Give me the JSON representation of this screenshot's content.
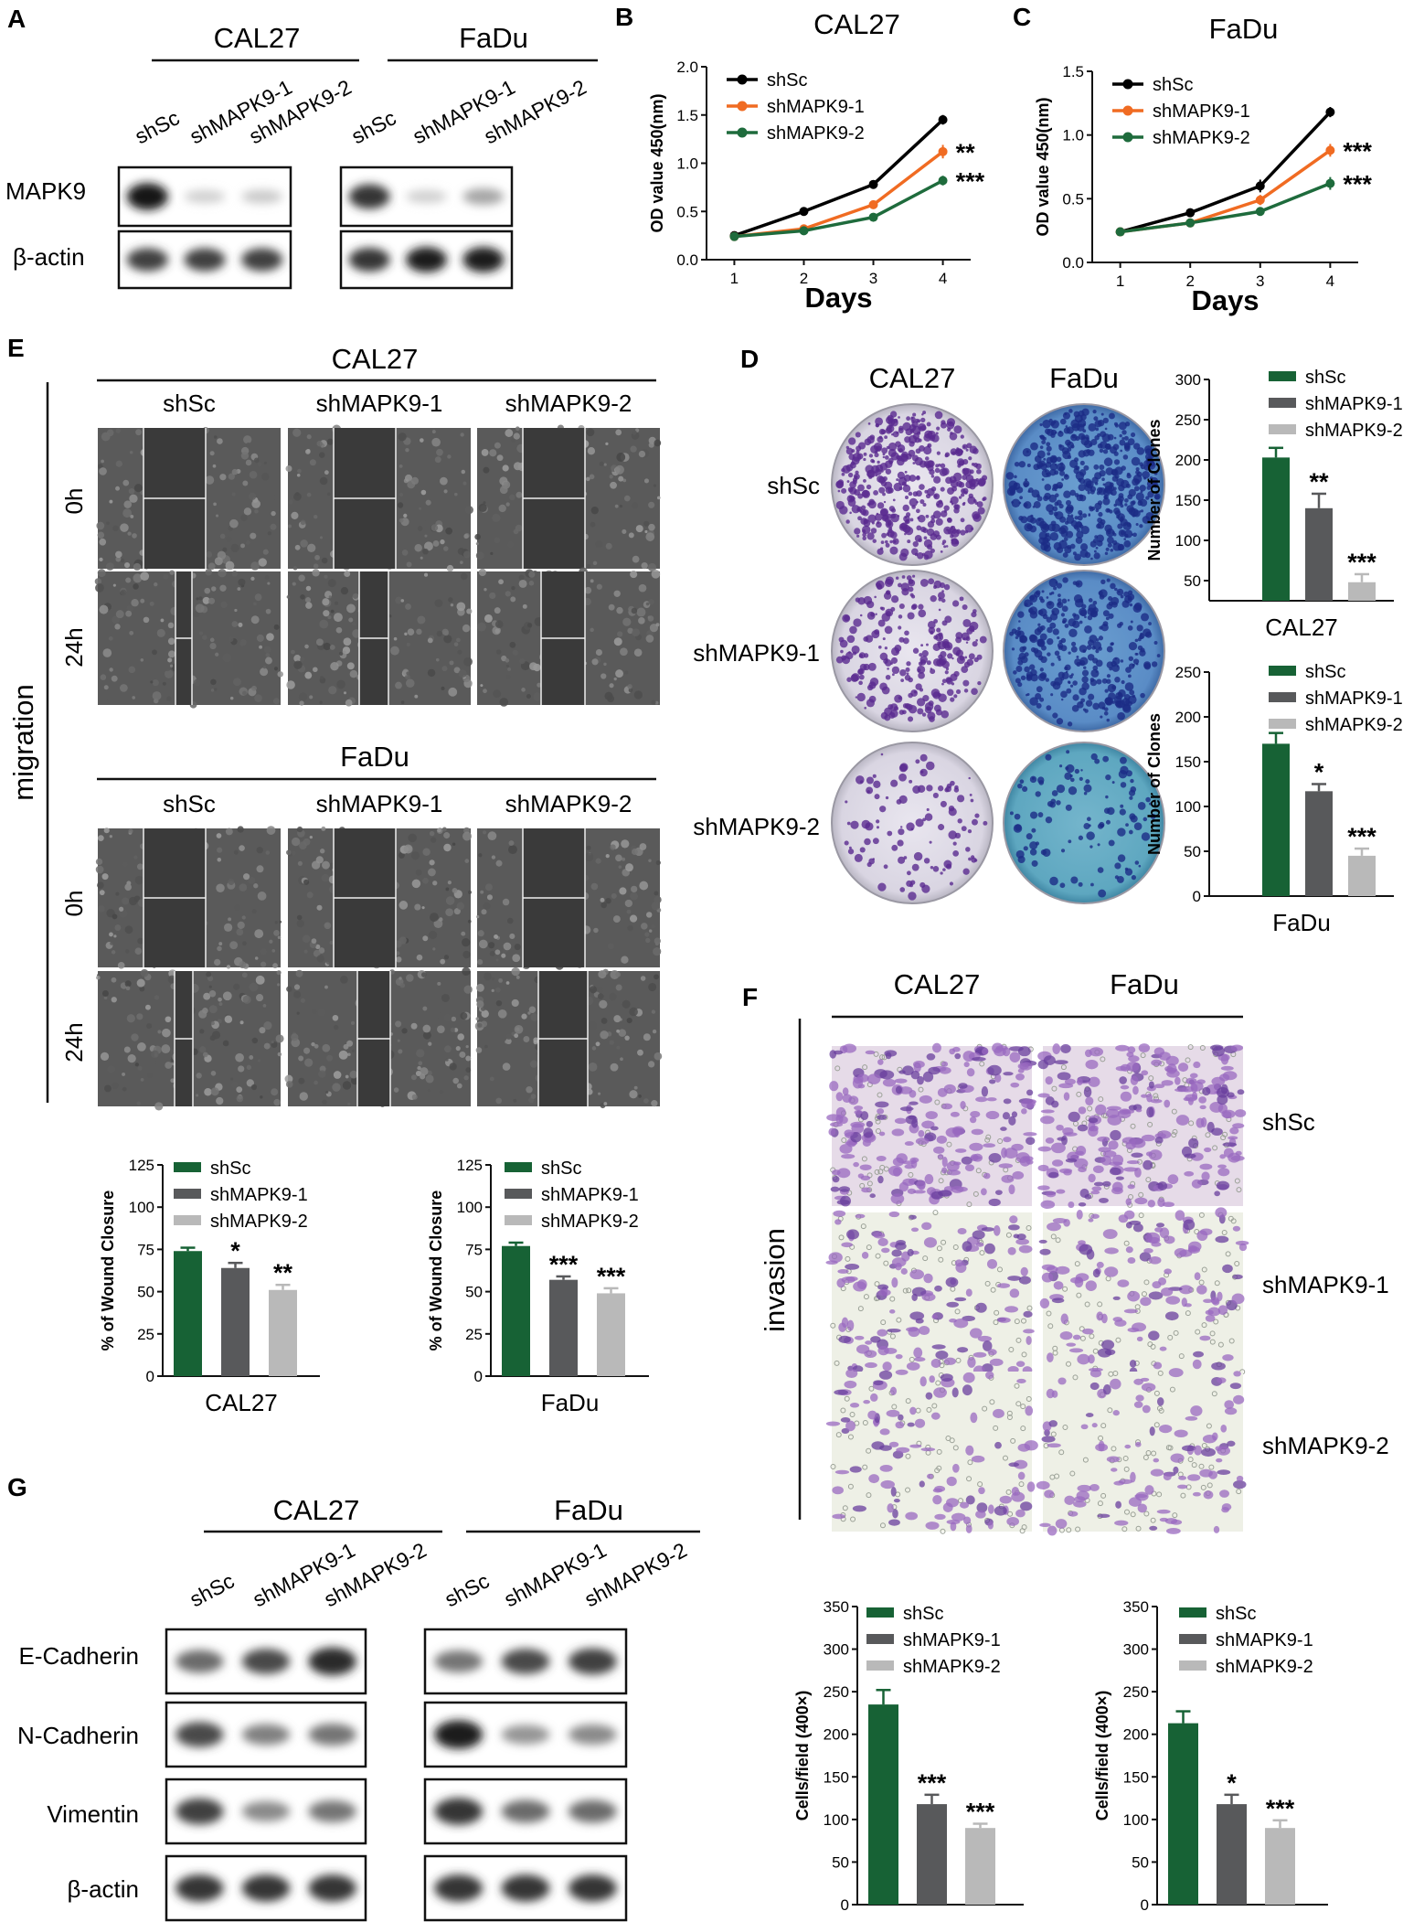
{
  "panel_labels": {
    "A": "A",
    "B": "B",
    "C": "C",
    "D": "D",
    "E": "E",
    "F": "F",
    "G": "G"
  },
  "colors": {
    "shSc": "#176235",
    "shMAPK9_1": "#58595b",
    "shMAPK9_2": "#b9b9b9",
    "line_shSc": "#000000",
    "line_shMAPK9_1": "#f06b22",
    "line_shMAPK9_2": "#1e6b3c"
  },
  "panelA": {
    "cells": [
      "CAL27",
      "FaDu"
    ],
    "lanes": [
      "shSc",
      "shMAPK9-1",
      "shMAPK9-2"
    ],
    "rows": [
      "MAPK9",
      "β-actin"
    ],
    "band_intensity": [
      [
        [
          1.0,
          0.12,
          0.15
        ],
        [
          0.8,
          0.8,
          0.8
        ]
      ],
      [
        [
          0.85,
          0.12,
          0.32
        ],
        [
          0.85,
          0.95,
          0.95
        ]
      ]
    ]
  },
  "panelG": {
    "cells": [
      "CAL27",
      "FaDu"
    ],
    "lanes": [
      "shSc",
      "shMAPK9-1",
      "shMAPK9-2"
    ],
    "rows": [
      "E-Cadherin",
      "N-Cadherin",
      "Vimentin",
      "β-actin"
    ],
    "band_intensity": [
      [
        [
          0.6,
          0.75,
          0.9
        ],
        [
          0.75,
          0.5,
          0.55
        ],
        [
          0.8,
          0.45,
          0.55
        ],
        [
          0.85,
          0.85,
          0.85
        ]
      ],
      [
        [
          0.55,
          0.75,
          0.8
        ],
        [
          0.95,
          0.4,
          0.45
        ],
        [
          0.85,
          0.6,
          0.6
        ],
        [
          0.85,
          0.85,
          0.85
        ]
      ]
    ]
  },
  "panelE": {
    "side_label": "migration",
    "cells": [
      "CAL27",
      "FaDu"
    ],
    "columns": [
      "shSc",
      "shMAPK9-1",
      "shMAPK9-2"
    ],
    "rows": [
      "0h",
      "24h"
    ],
    "gap_fraction_0h": [
      0.34,
      0.34,
      0.34
    ],
    "gap_fraction_24h_CAL27": [
      0.09,
      0.16,
      0.24
    ],
    "gap_fraction_24h_FaDu": [
      0.1,
      0.18,
      0.27
    ]
  },
  "panelD": {
    "cells": [
      "CAL27",
      "FaDu"
    ],
    "rows": [
      "shSc",
      "shMAPK9-1",
      "shMAPK9-2"
    ],
    "colony_density": [
      [
        1.0,
        0.55,
        0.2
      ],
      [
        1.0,
        0.7,
        0.2
      ]
    ]
  },
  "panelF": {
    "side_label": "invasion",
    "cells": [
      "CAL27",
      "FaDu"
    ],
    "rows": [
      "shSc",
      "shMAPK9-1",
      "shMAPK9-2"
    ],
    "cell_density": [
      [
        1.0,
        0.6,
        0.45
      ],
      [
        1.0,
        0.55,
        0.45
      ]
    ]
  },
  "chart_data": [
    {
      "id": "B",
      "type": "line",
      "title": "CAL27",
      "xlabel": "Days",
      "ylabel": "OD value 450(nm)",
      "x": [
        1,
        2,
        3,
        4
      ],
      "xlim": [
        0.6,
        4.4
      ],
      "ylim": [
        0,
        2.0
      ],
      "xticks": [
        "1",
        "2",
        "3",
        "4"
      ],
      "yticks": [
        "0.0",
        "0.5",
        "1.0",
        "1.5",
        "2.0"
      ],
      "legend_position": "top-left",
      "series": [
        {
          "name": "shSc",
          "values": [
            0.25,
            0.5,
            0.78,
            1.45
          ],
          "errors": [
            0.01,
            0.02,
            0.03,
            0.05
          ],
          "color": "#000000"
        },
        {
          "name": "shMAPK9-1",
          "values": [
            0.24,
            0.32,
            0.57,
            1.12
          ],
          "errors": [
            0.01,
            0.02,
            0.04,
            0.07
          ],
          "color": "#f06b22"
        },
        {
          "name": "shMAPK9-2",
          "values": [
            0.24,
            0.3,
            0.44,
            0.82
          ],
          "errors": [
            0.01,
            0.02,
            0.02,
            0.05
          ],
          "color": "#1e6b3c"
        }
      ],
      "annotations": [
        "**",
        "***"
      ]
    },
    {
      "id": "C",
      "type": "line",
      "title": "FaDu",
      "xlabel": "Days",
      "ylabel": "OD value 450(nm)",
      "x": [
        1,
        2,
        3,
        4
      ],
      "xlim": [
        0.6,
        4.4
      ],
      "ylim": [
        0,
        1.5
      ],
      "xticks": [
        "1",
        "2",
        "3",
        "4"
      ],
      "yticks": [
        "0.0",
        "0.5",
        "1.0",
        "1.5"
      ],
      "legend_position": "top-left",
      "series": [
        {
          "name": "shSc",
          "values": [
            0.24,
            0.39,
            0.6,
            1.18
          ],
          "errors": [
            0.01,
            0.02,
            0.05,
            0.04
          ],
          "color": "#000000"
        },
        {
          "name": "shMAPK9-1",
          "values": [
            0.24,
            0.31,
            0.49,
            0.88
          ],
          "errors": [
            0.01,
            0.02,
            0.04,
            0.05
          ],
          "color": "#f06b22"
        },
        {
          "name": "shMAPK9-2",
          "values": [
            0.24,
            0.31,
            0.4,
            0.62
          ],
          "errors": [
            0.01,
            0.02,
            0.02,
            0.05
          ],
          "color": "#1e6b3c"
        }
      ],
      "annotations": [
        "***",
        "***"
      ]
    },
    {
      "id": "D-CAL27",
      "type": "bar",
      "title": "",
      "xlabel": "CAL27",
      "ylabel": "Number of Clones",
      "categories": [
        "shSc",
        "shMAPK9-1",
        "shMAPK9-2"
      ],
      "values": [
        203,
        140,
        48
      ],
      "errors": [
        12,
        18,
        10
      ],
      "ylim": [
        25,
        300
      ],
      "yticks": [
        "50",
        "100",
        "150",
        "200",
        "250",
        "300"
      ],
      "significance": [
        "",
        "**",
        "***"
      ],
      "legend_position": "top-right"
    },
    {
      "id": "D-FaDu",
      "type": "bar",
      "title": "",
      "xlabel": "FaDu",
      "ylabel": "Number of Clones",
      "categories": [
        "shSc",
        "shMAPK9-1",
        "shMAPK9-2"
      ],
      "values": [
        170,
        117,
        45
      ],
      "errors": [
        12,
        8,
        8
      ],
      "ylim": [
        0,
        250
      ],
      "yticks": [
        "0",
        "50",
        "100",
        "150",
        "200",
        "250"
      ],
      "significance": [
        "",
        "*",
        "***"
      ],
      "legend_position": "top-right"
    },
    {
      "id": "E-CAL27",
      "type": "bar",
      "title": "",
      "xlabel": "CAL27",
      "ylabel": "% of Wound Closure",
      "categories": [
        "shSc",
        "shMAPK9-1",
        "shMAPK9-2"
      ],
      "values": [
        74,
        64,
        51
      ],
      "errors": [
        2,
        3,
        3
      ],
      "ylim": [
        0,
        125
      ],
      "yticks": [
        "0",
        "25",
        "50",
        "75",
        "100",
        "125"
      ],
      "significance": [
        "",
        "*",
        "**"
      ],
      "legend_position": "top-right"
    },
    {
      "id": "E-FaDu",
      "type": "bar",
      "title": "",
      "xlabel": "FaDu",
      "ylabel": "% of Wound Closure",
      "categories": [
        "shSc",
        "shMAPK9-1",
        "shMAPK9-2"
      ],
      "values": [
        77,
        57,
        49
      ],
      "errors": [
        2,
        2,
        3
      ],
      "ylim": [
        0,
        125
      ],
      "yticks": [
        "0",
        "25",
        "50",
        "75",
        "100",
        "125"
      ],
      "significance": [
        "",
        "***",
        "***"
      ],
      "legend_position": "top-right"
    },
    {
      "id": "F-CAL27",
      "type": "bar",
      "title": "",
      "xlabel": "CAL27",
      "ylabel": "Cells/field (400×)",
      "categories": [
        "shSc",
        "shMAPK9-1",
        "shMAPK9-2"
      ],
      "values": [
        235,
        118,
        90
      ],
      "errors": [
        17,
        11,
        5
      ],
      "ylim": [
        0,
        350
      ],
      "yticks": [
        "0",
        "50",
        "100",
        "150",
        "200",
        "250",
        "300",
        "350"
      ],
      "significance": [
        "",
        "***",
        "***"
      ],
      "legend_position": "top-right"
    },
    {
      "id": "F-FaDu",
      "type": "bar",
      "title": "",
      "xlabel": "FaDu",
      "ylabel": "Cells/field (400×)",
      "categories": [
        "shSc",
        "shMAPK9-1",
        "shMAPK9-2"
      ],
      "values": [
        213,
        118,
        90
      ],
      "errors": [
        14,
        11,
        9
      ],
      "ylim": [
        0,
        350
      ],
      "yticks": [
        "0",
        "50",
        "100",
        "150",
        "200",
        "250",
        "300",
        "350"
      ],
      "significance": [
        "",
        "*",
        "***"
      ],
      "legend_position": "top-right"
    }
  ]
}
